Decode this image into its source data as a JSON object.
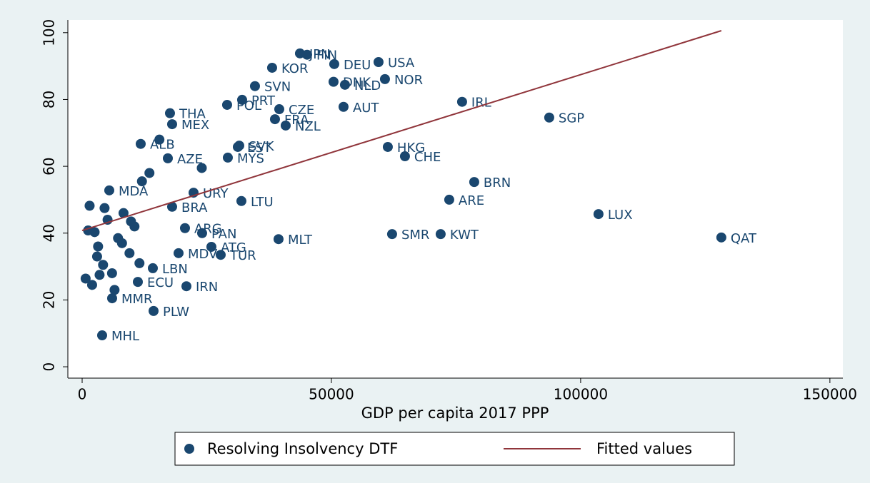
{
  "chart_data": {
    "type": "scatter",
    "xlabel": "GDP per capita 2017 PPP",
    "xlim": [
      -2865,
      152600
    ],
    "ylim": [
      -3.4,
      103.8
    ],
    "xticks": [
      0,
      50000,
      100000,
      150000
    ],
    "yticks": [
      0,
      20,
      40,
      60,
      80,
      100
    ],
    "grid": false,
    "legend": "bottom",
    "series": [
      {
        "name": "Resolving Insolvency DTF",
        "type": "scatter",
        "color": "#1a476f",
        "labels": [
          "QAT",
          "LUX",
          "SGP",
          "IRL",
          "BRN",
          "ARE",
          "KWT",
          "SMR",
          "CHE",
          "HKG",
          "NOR",
          "USA",
          "DEU",
          "JPN",
          "FIN",
          "KOR",
          "DNK",
          "NLD",
          "SVN",
          "AUT",
          "FRA",
          "NZL",
          "MLT",
          "THA",
          "MEX",
          "MYS",
          "AZE",
          "SVK",
          "EST",
          "TUR",
          "IRN",
          "LBN",
          "PAN",
          "ARG",
          "PLW",
          "MMR",
          "MHL",
          "MDA",
          "ALB",
          "PRT",
          "POL",
          "CZE",
          "LTU",
          "ECU",
          "MDV",
          "ATG",
          "URY",
          "BRA",
          null,
          null,
          null,
          null,
          null,
          null,
          null,
          null,
          null,
          null,
          null,
          null,
          null,
          null,
          null,
          null,
          null,
          null,
          null,
          null,
          null,
          null,
          null,
          null
        ],
        "x": [
          128224,
          103582,
          93696,
          76218,
          78653,
          73639,
          71920,
          62178,
          64756,
          61318,
          60745,
          59456,
          50573,
          43696,
          45129,
          38109,
          50430,
          52722,
          34670,
          52436,
          38682,
          40831,
          39398,
          17622,
          18052,
          29226,
          17192,
          31519,
          31232,
          27794,
          20917,
          14183,
          24069,
          20630,
          14327,
          6017,
          4011,
          5444,
          11748,
          32092,
          29083,
          39542,
          31948,
          11175,
          19341,
          25931,
          22350,
          18052,
          700,
          1500,
          2500,
          3200,
          4200,
          5100,
          6000,
          7200,
          8300,
          9500,
          10500,
          12000,
          2000,
          3000,
          4500,
          6500,
          8000,
          9800,
          11500,
          13500,
          15500,
          3500,
          1200,
          24000
        ],
        "values": [
          38.7,
          45.7,
          74.6,
          79.3,
          55.3,
          50.0,
          39.7,
          39.7,
          63.0,
          65.8,
          86.1,
          91.2,
          90.6,
          93.8,
          93.4,
          89.5,
          85.3,
          84.4,
          84.0,
          77.8,
          74.1,
          72.2,
          38.2,
          75.9,
          72.6,
          62.6,
          62.4,
          66.2,
          65.8,
          33.5,
          24.1,
          29.5,
          40.0,
          41.5,
          16.7,
          20.5,
          9.4,
          52.8,
          66.7,
          79.9,
          78.4,
          77.1,
          49.6,
          25.4,
          34.0,
          35.9,
          52.1,
          47.9,
          26.4,
          48.2,
          40.3,
          36.0,
          30.5,
          44.0,
          28.0,
          38.5,
          46.0,
          34.0,
          42.0,
          55.5,
          24.5,
          33.0,
          47.5,
          23.0,
          37.0,
          43.5,
          31.0,
          58.0,
          68.0,
          27.5,
          40.8,
          59.5
        ]
      },
      {
        "name": "Fitted values",
        "type": "line",
        "color": "#90353b",
        "x": [
          0,
          128224
        ],
        "values": [
          40.8,
          100.6
        ]
      }
    ]
  }
}
